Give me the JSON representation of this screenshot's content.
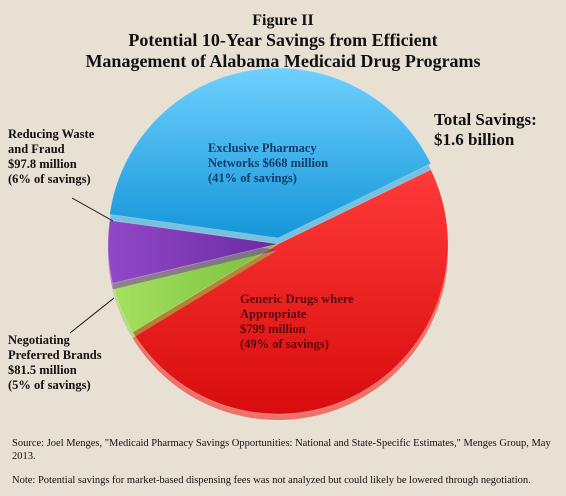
{
  "title": {
    "figure": "Figure II",
    "line1": "Potential 10-Year Savings from Efficient",
    "line2": "Management of Alabama Medicaid Drug Programs"
  },
  "total": {
    "line1": "Total Savings:",
    "line2": "$1.6 billion"
  },
  "chart_data": {
    "type": "pie",
    "title": "Potential 10-Year Savings from Efficient Management of Alabama Medicaid Drug Programs",
    "slices": [
      {
        "key": "exclusive",
        "lines": [
          "Exclusive Pharmacy",
          "Networks $668 million",
          "(41% of savings)"
        ],
        "value": 668,
        "percent": 41,
        "color": "#1aa7e8"
      },
      {
        "key": "generic",
        "lines": [
          "Generic Drugs where",
          "Appropriate",
          "$799 million",
          "(49% of savings)"
        ],
        "value": 799,
        "percent": 49,
        "color": "#f01818"
      },
      {
        "key": "negotiating",
        "lines": [
          "Negotiating",
          "Preferred Brands",
          "$81.5 million",
          "(5% of savings)"
        ],
        "value": 81.5,
        "percent": 5,
        "color": "#8ed24a"
      },
      {
        "key": "waste",
        "lines": [
          "Reducing Waste",
          "and Fraud",
          "$97.8 million",
          "(6% of savings)"
        ],
        "value": 97.8,
        "percent": 6,
        "color": "#7a35b0"
      }
    ]
  },
  "source": "Source: Joel Menges, \"Medicaid Pharmacy Savings Opportunities: National and State-Specific Estimates,\" Menges Group, May 2013.",
  "note": "Note: Potential savings for market-based dispensing fees was not analyzed but could likely be lowered through negotiation."
}
